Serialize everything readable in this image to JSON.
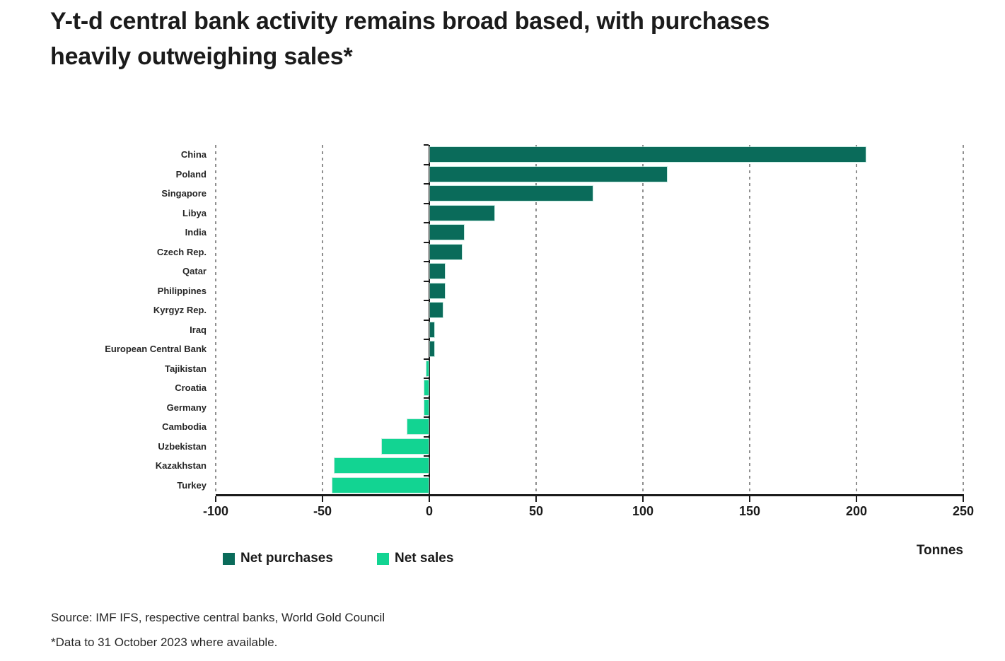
{
  "title": {
    "line1": "Y-t-d central bank activity remains broad based, with purchases",
    "line2": "heavily outweighing sales*"
  },
  "chart_data": {
    "type": "bar",
    "orientation": "horizontal",
    "title": "Y-t-d central bank activity remains broad based, with purchases heavily outweighing sales*",
    "xlabel": "Tonnes",
    "unit": "tonnes",
    "xlim": [
      -100,
      250
    ],
    "xticks": [
      -100,
      -50,
      0,
      50,
      100,
      150,
      200,
      250
    ],
    "gridlines": [
      -100,
      -50,
      50,
      100,
      150,
      200,
      250
    ],
    "grid_style": "dashed-vertical",
    "legend_position": "bottom-left",
    "categories": [
      "China",
      "Poland",
      "Singapore",
      "Libya",
      "India",
      "Czech Rep.",
      "Qatar",
      "Philippines",
      "Kyrgyz Rep.",
      "Iraq",
      "European Central Bank",
      "Tajikistan",
      "Croatia",
      "Germany",
      "Cambodia",
      "Uzbekistan",
      "Kazakhstan",
      "Turkey"
    ],
    "values": [
      204,
      111,
      76,
      30,
      16,
      15,
      7,
      7,
      6,
      2,
      2,
      -1,
      -2,
      -2,
      -10,
      -22,
      -44,
      -45
    ],
    "series_colors": {
      "net_purchases": "#0A6B5A",
      "net_sales": "#12D492"
    }
  },
  "legend": {
    "items": [
      {
        "label": "Net purchases",
        "color": "#0A6B5A"
      },
      {
        "label": "Net sales",
        "color": "#12D492"
      }
    ]
  },
  "axis": {
    "unit_label": "Tonnes"
  },
  "footer": {
    "source": "Source: IMF IFS, respective central banks, World Gold Council",
    "note": "*Data to 31 October 2023 where available."
  }
}
